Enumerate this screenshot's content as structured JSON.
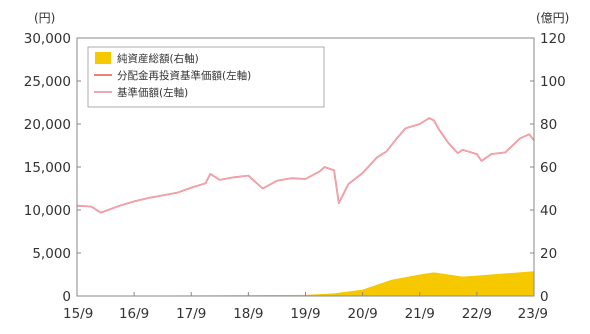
{
  "chart_data": {
    "type": "line",
    "title": "",
    "left_axis": {
      "unit_label": "(円)",
      "ylim": [
        0,
        30000
      ],
      "ticks": [
        0,
        5000,
        10000,
        15000,
        20000,
        25000,
        30000
      ],
      "tick_labels": [
        "0",
        "5,000",
        "10,000",
        "15,000",
        "20,000",
        "25,000",
        "30,000"
      ]
    },
    "right_axis": {
      "unit_label": "(億円)",
      "ylim": [
        0,
        120
      ],
      "ticks": [
        0,
        20,
        40,
        60,
        80,
        100,
        120
      ],
      "tick_labels": [
        "0",
        "20",
        "40",
        "60",
        "80",
        "100",
        "120"
      ]
    },
    "x_axis": {
      "tick_labels": [
        "15/9",
        "16/9",
        "17/9",
        "18/9",
        "19/9",
        "20/9",
        "21/9",
        "22/9",
        "23/9"
      ],
      "range": [
        "15/9",
        "23/9"
      ]
    },
    "legend": {
      "position": "top-left",
      "entries": [
        {
          "key": "assets",
          "label": "純資産総額(右軸)",
          "color": "#f5c800",
          "kind": "area"
        },
        {
          "key": "reinvested",
          "label": "分配金再投資基準価額(左軸)",
          "color": "#ef7f7a",
          "kind": "line"
        },
        {
          "key": "nav",
          "label": "基準価額(左軸)",
          "color": "#f0a6b4",
          "kind": "line"
        }
      ]
    },
    "series": [
      {
        "key": "nav",
        "name": "基準価額(左軸)",
        "axis": "left",
        "x": [
          "15/9",
          "15/12",
          "16/2",
          "16/6",
          "16/9",
          "16/12",
          "17/3",
          "17/6",
          "17/9",
          "17/12",
          "18/1",
          "18/3",
          "18/6",
          "18/9",
          "18/10",
          "18/12",
          "19/3",
          "19/6",
          "19/9",
          "19/12",
          "20/1",
          "20/3",
          "20/4",
          "20/6",
          "20/9",
          "20/12",
          "21/2",
          "21/4",
          "21/6",
          "21/9",
          "21/11",
          "21/12",
          "22/1",
          "22/3",
          "22/5",
          "22/6",
          "22/9",
          "22/10",
          "22/12",
          "23/3",
          "23/6",
          "23/8",
          "23/9"
        ],
        "y": [
          10500,
          10400,
          9700,
          10500,
          11000,
          11400,
          11700,
          12000,
          12600,
          13100,
          14200,
          13500,
          13800,
          14000,
          13500,
          12500,
          13400,
          13700,
          13600,
          14500,
          15000,
          14600,
          10800,
          13000,
          14300,
          16100,
          16800,
          18200,
          19500,
          20000,
          20700,
          20400,
          19400,
          17800,
          16600,
          17000,
          16500,
          15700,
          16500,
          16700,
          18300,
          18800,
          18100
        ]
      },
      {
        "key": "assets",
        "name": "純資産総額(右軸)",
        "axis": "right",
        "x": [
          "15/9",
          "16/9",
          "17/9",
          "18/9",
          "19/9",
          "20/3",
          "20/9",
          "21/3",
          "21/9",
          "21/12",
          "22/3",
          "22/6",
          "22/9",
          "23/3",
          "23/9"
        ],
        "y": [
          0.1,
          0.2,
          0.3,
          0.4,
          0.5,
          1.2,
          3.0,
          7.5,
          10.0,
          11.0,
          10.0,
          9.0,
          9.5,
          10.5,
          11.5
        ]
      }
    ],
    "grid": false
  }
}
